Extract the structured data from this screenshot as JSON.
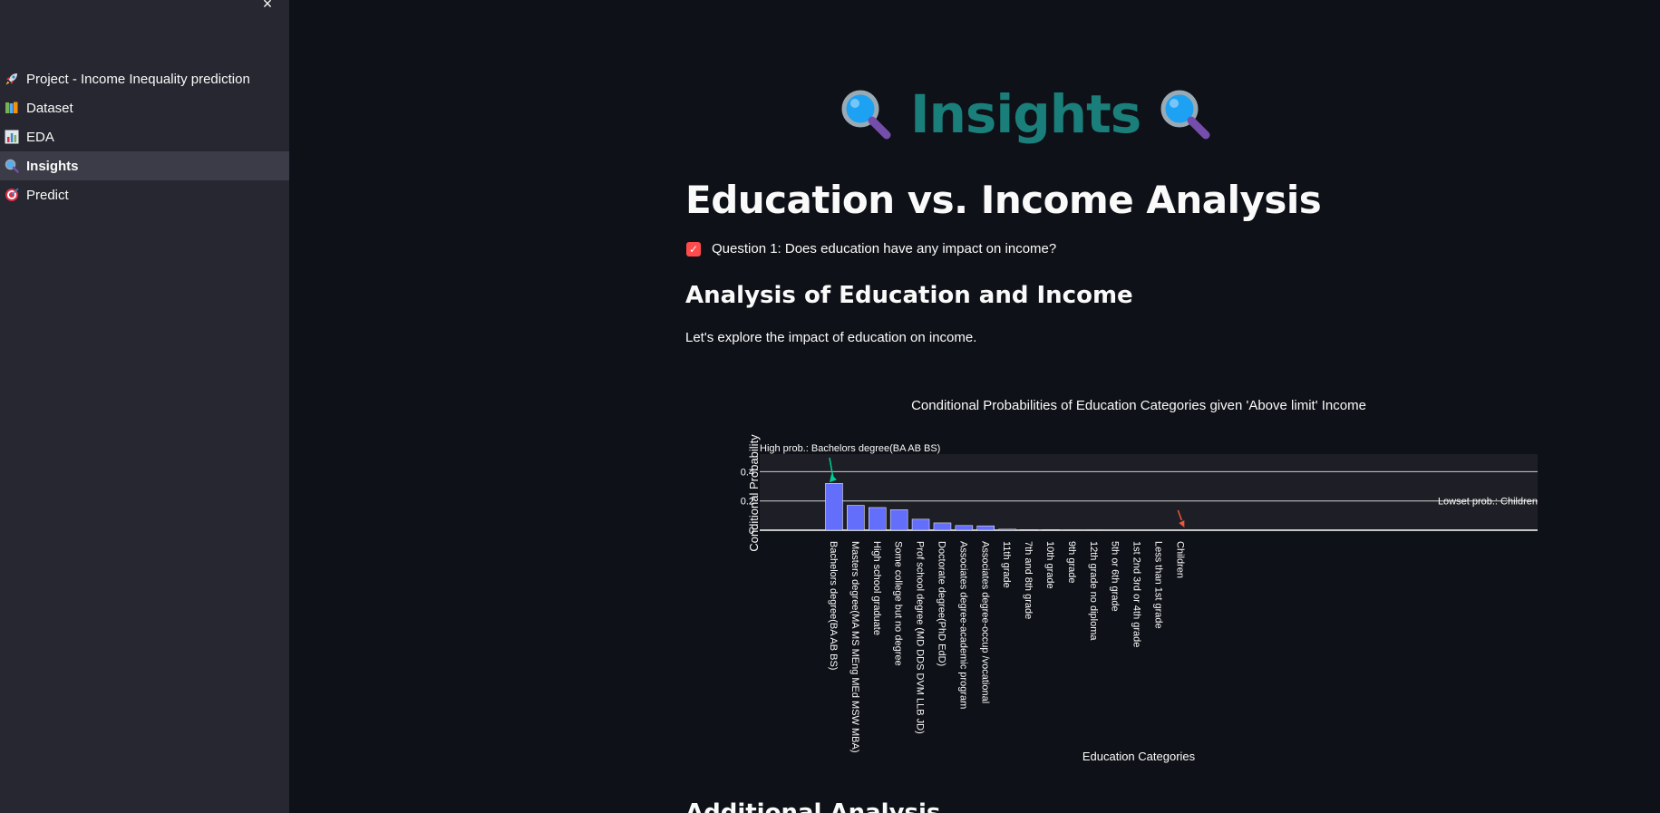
{
  "sidebar": {
    "close_label": "×",
    "items": [
      {
        "label": "Project - Income Inequality prediction",
        "icon": "rocket-icon",
        "active": false
      },
      {
        "label": "Dataset",
        "icon": "books-icon",
        "active": false
      },
      {
        "label": "EDA",
        "icon": "bar-chart-icon",
        "active": false
      },
      {
        "label": "Insights",
        "icon": "magnifier-icon",
        "active": true
      },
      {
        "label": "Predict",
        "icon": "target-icon",
        "active": false
      }
    ]
  },
  "main": {
    "hero_title": "Insights",
    "heading": "Education vs. Income Analysis",
    "question_checkbox": {
      "label": "Question 1: Does education have any impact on income?",
      "checked": true
    },
    "subheading": "Analysis of Education and Income",
    "paragraph": "Let's explore the impact of education on income.",
    "next_heading": "Additional Analysis"
  },
  "colors": {
    "accent": "#ff4b4b",
    "hero": "#1a7f7a",
    "bar": "#636efa",
    "high_arrow": "#00cc96",
    "low_arrow": "#ef553b"
  },
  "chart_data": {
    "type": "bar",
    "title": "Conditional Probabilities of Education Categories given 'Above limit' Income",
    "xlabel": "Education Categories",
    "ylabel": "Conditional Probability",
    "ylim": [
      0,
      0.52
    ],
    "yticks": [
      0,
      0.2,
      0.4
    ],
    "ytick_labels": [
      "0",
      "0.2",
      "0.4"
    ],
    "grid": true,
    "categories": [
      "Bachelors degree(BA AB BS)",
      "Masters degree(MA MS MEng MEd MSW MBA)",
      "High school graduate",
      "Some college but no degree",
      "Prof school degree (MD DDS DVM LLB JD)",
      "Doctorate degree(PhD EdD)",
      "Associates degree-academic program",
      "Associates degree-occup /vocational",
      "11th grade",
      "7th and 8th grade",
      "10th grade",
      "9th grade",
      "12th grade no diploma",
      "5th or 6th grade",
      "1st 2nd 3rd or 4th grade",
      "Less than 1st grade",
      "Children"
    ],
    "values": [
      0.32,
      0.17,
      0.155,
      0.14,
      0.075,
      0.05,
      0.032,
      0.03,
      0.007,
      0.004,
      0.003,
      0.002,
      0.002,
      0.001,
      0.0005,
      0.0003,
      0
    ],
    "annotations": [
      {
        "text": "High prob.:  Bachelors degree(BA AB BS)",
        "category_index": 0
      },
      {
        "text": "Lowset prob.:  Children",
        "category_index": 16
      }
    ]
  }
}
